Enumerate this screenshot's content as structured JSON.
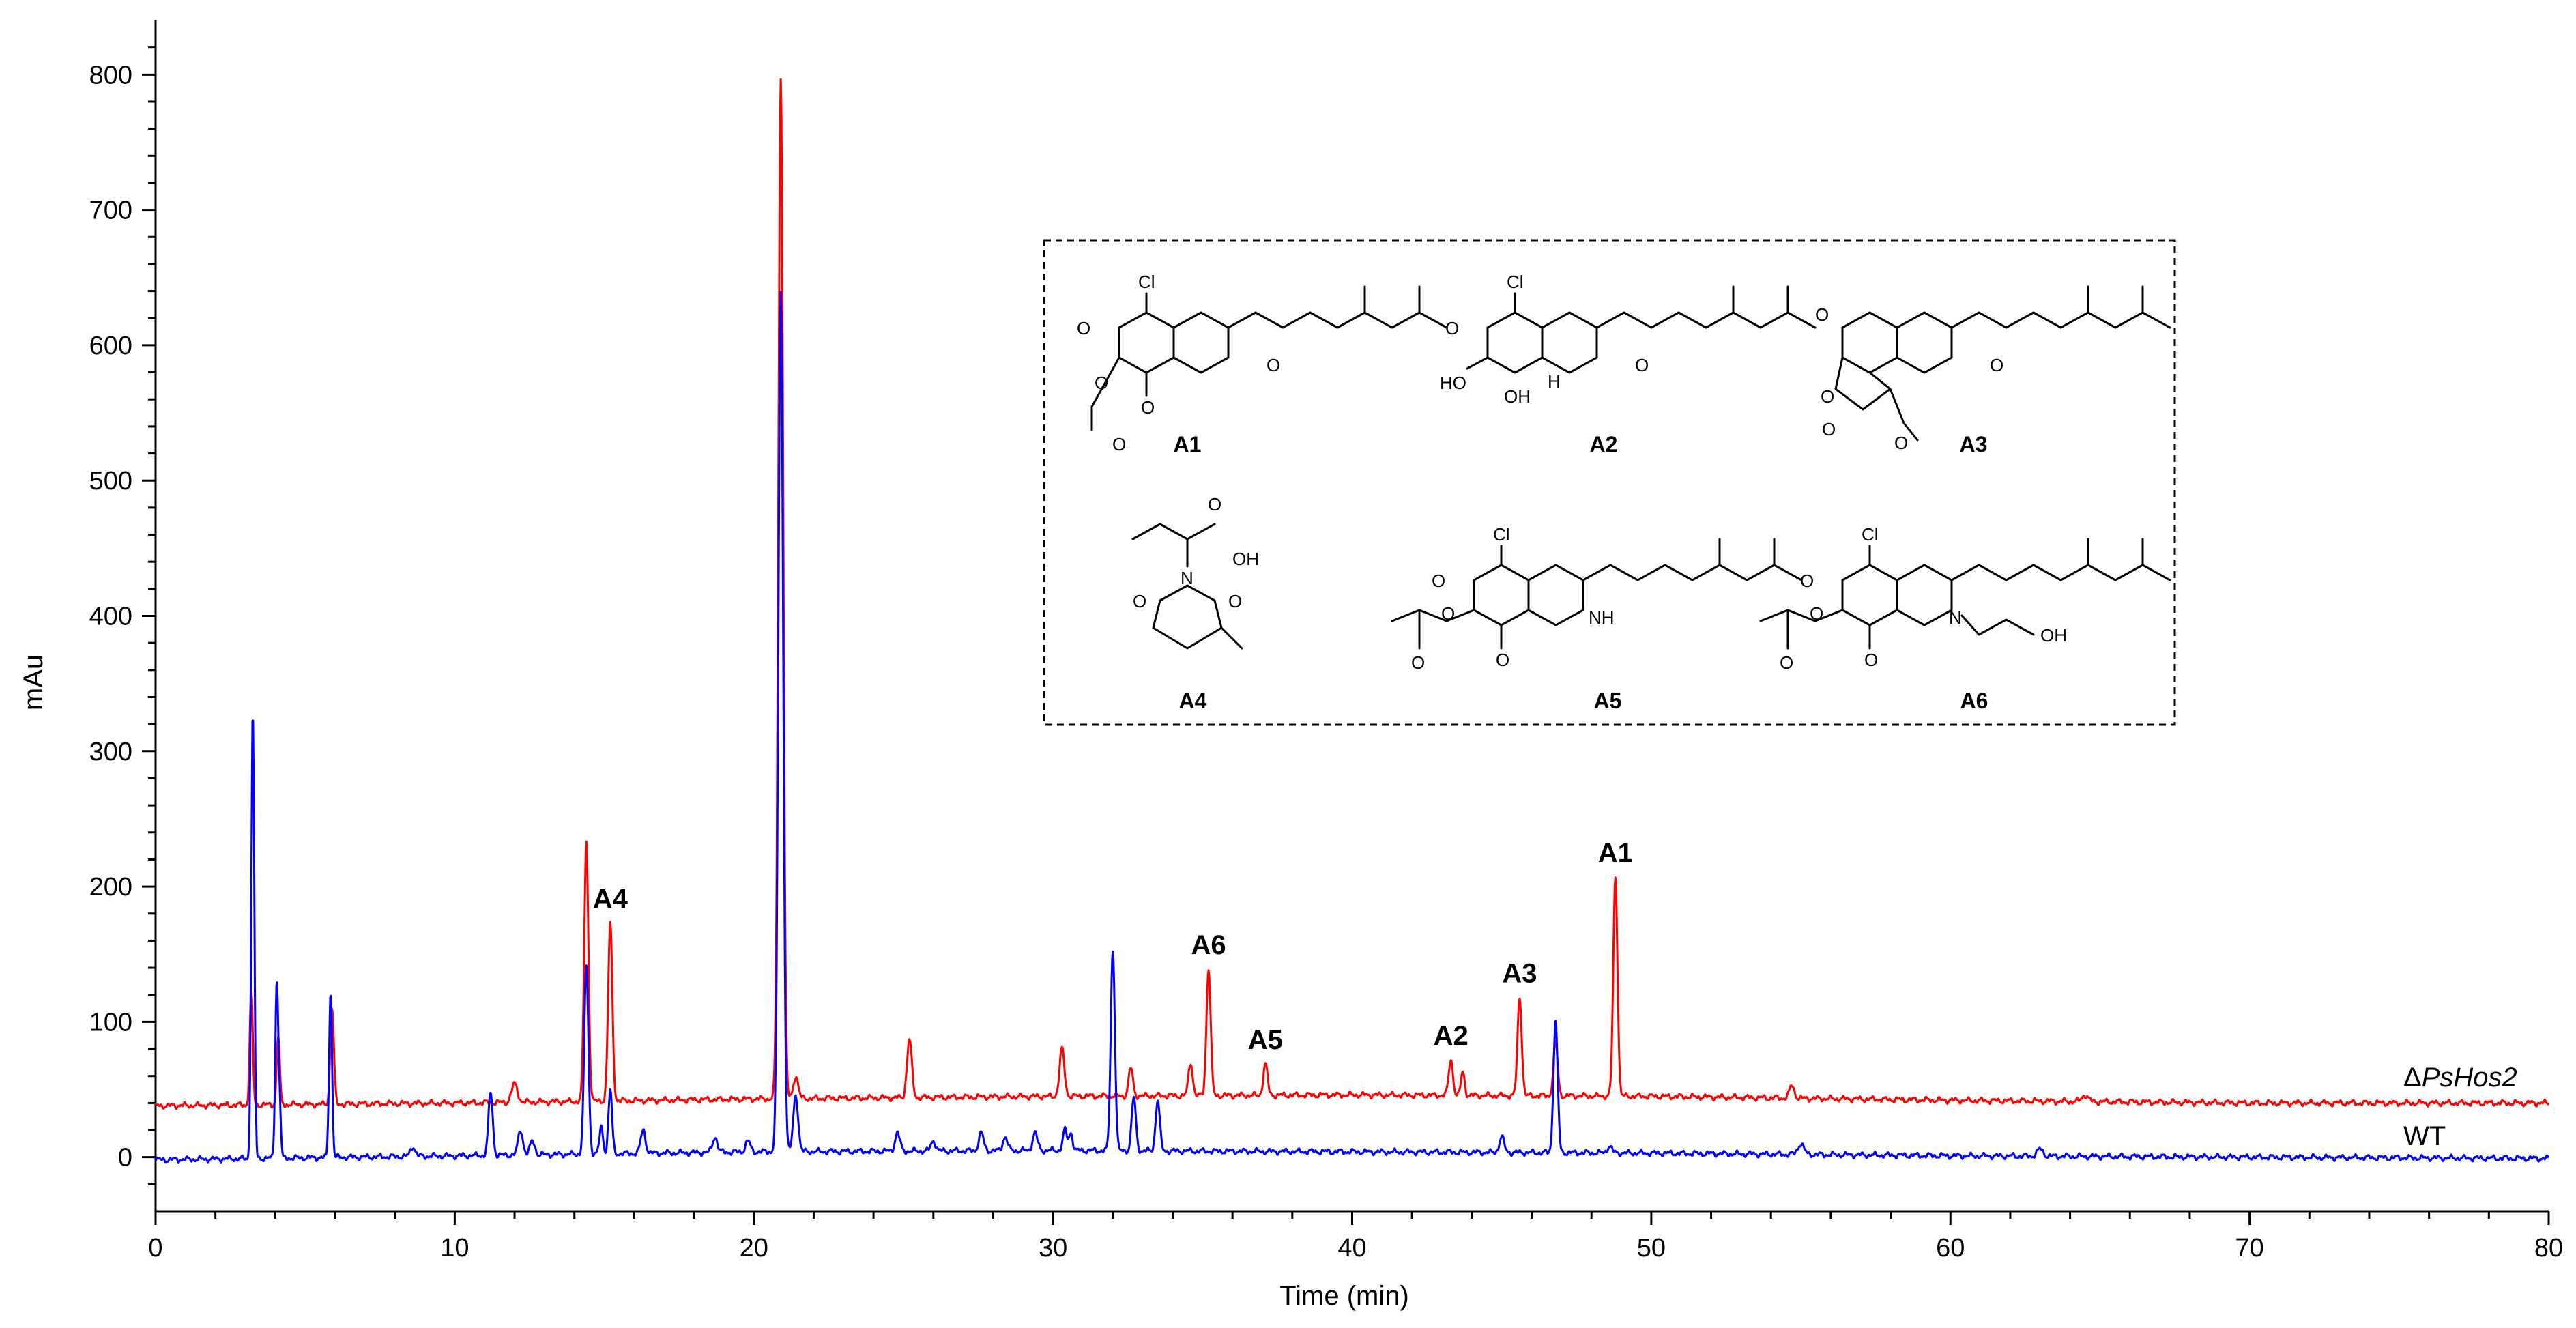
{
  "chart_data": {
    "type": "line",
    "xlabel": "Time (min)",
    "ylabel": "mAu",
    "xlim": [
      0,
      80
    ],
    "ylim": [
      -40,
      840
    ],
    "x_ticks": [
      0,
      10,
      20,
      30,
      40,
      50,
      60,
      70,
      80
    ],
    "y_ticks": [
      0,
      100,
      200,
      300,
      400,
      500,
      600,
      700,
      800
    ],
    "grid": false,
    "series": [
      {
        "name": "ΔPsHos2",
        "color": "#ff0000",
        "baseline": [
          [
            0,
            38
          ],
          [
            10,
            40
          ],
          [
            20,
            43
          ],
          [
            30,
            45
          ],
          [
            40,
            46
          ],
          [
            50,
            45
          ],
          [
            60,
            42
          ],
          [
            70,
            40
          ],
          [
            80,
            40
          ]
        ],
        "peaks": [
          [
            3.2,
            122,
            0.05
          ],
          [
            4.1,
            90,
            0.05
          ],
          [
            5.9,
            110,
            0.06
          ],
          [
            12.0,
            54,
            0.1
          ],
          [
            14.4,
            233,
            0.07
          ],
          [
            15.2,
            173,
            0.07
          ],
          [
            20.9,
            797,
            0.08
          ],
          [
            21.4,
            60,
            0.08
          ],
          [
            25.2,
            87,
            0.08
          ],
          [
            30.3,
            80,
            0.08
          ],
          [
            32.6,
            66,
            0.07
          ],
          [
            34.6,
            70,
            0.07
          ],
          [
            35.2,
            139,
            0.07
          ],
          [
            37.1,
            69,
            0.07
          ],
          [
            43.3,
            72,
            0.07
          ],
          [
            43.7,
            63,
            0.06
          ],
          [
            45.6,
            118,
            0.07
          ],
          [
            46.8,
            85,
            0.07
          ],
          [
            48.8,
            207,
            0.07
          ],
          [
            54.7,
            53,
            0.08
          ],
          [
            64.5,
            46,
            0.1
          ]
        ]
      },
      {
        "name": "WT",
        "color": "#0000ff",
        "baseline": [
          [
            0,
            -2
          ],
          [
            10,
            1
          ],
          [
            20,
            4
          ],
          [
            30,
            5
          ],
          [
            40,
            4
          ],
          [
            50,
            3
          ],
          [
            60,
            1
          ],
          [
            70,
            0
          ],
          [
            80,
            -1
          ]
        ],
        "peaks": [
          [
            3.25,
            328,
            0.05
          ],
          [
            4.05,
            130,
            0.05
          ],
          [
            4.15,
            35,
            0.04
          ],
          [
            5.85,
            122,
            0.05
          ],
          [
            8.6,
            8,
            0.08
          ],
          [
            11.2,
            48,
            0.07
          ],
          [
            12.2,
            20,
            0.08
          ],
          [
            12.6,
            12,
            0.08
          ],
          [
            14.4,
            142,
            0.07
          ],
          [
            14.9,
            22,
            0.06
          ],
          [
            15.2,
            50,
            0.06
          ],
          [
            16.3,
            20,
            0.08
          ],
          [
            18.7,
            15,
            0.08
          ],
          [
            19.8,
            12,
            0.08
          ],
          [
            20.9,
            640,
            0.08
          ],
          [
            21.4,
            46,
            0.08
          ],
          [
            24.8,
            18,
            0.08
          ],
          [
            26.0,
            12,
            0.08
          ],
          [
            27.6,
            18,
            0.08
          ],
          [
            28.4,
            15,
            0.08
          ],
          [
            29.4,
            18,
            0.08
          ],
          [
            30.4,
            20,
            0.07
          ],
          [
            30.6,
            18,
            0.06
          ],
          [
            32.0,
            153,
            0.07
          ],
          [
            32.7,
            44,
            0.07
          ],
          [
            33.5,
            42,
            0.07
          ],
          [
            45.0,
            15,
            0.08
          ],
          [
            46.8,
            100,
            0.07
          ],
          [
            48.6,
            8,
            0.08
          ],
          [
            55.0,
            10,
            0.1
          ],
          [
            63.0,
            6,
            0.1
          ]
        ]
      }
    ],
    "annotations": [
      {
        "text": "A4",
        "x": 15.2,
        "y": 173
      },
      {
        "text": "A6",
        "x": 35.2,
        "y": 139
      },
      {
        "text": "A5",
        "x": 37.1,
        "y": 69
      },
      {
        "text": "A2",
        "x": 43.3,
        "y": 72
      },
      {
        "text": "A3",
        "x": 45.6,
        "y": 118
      },
      {
        "text": "A1",
        "x": 48.8,
        "y": 207
      }
    ],
    "structure_labels": [
      "A1",
      "A2",
      "A3",
      "A4",
      "A5",
      "A6"
    ],
    "atom_labels": {
      "cl": "Cl",
      "o": "O",
      "ho": "HO",
      "oh": "OH",
      "h": "H",
      "n": "N",
      "nh": "NH"
    }
  }
}
